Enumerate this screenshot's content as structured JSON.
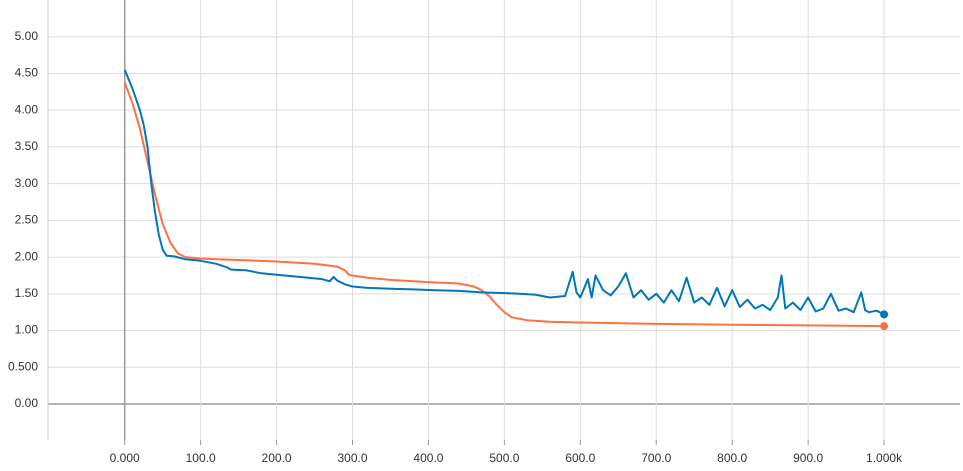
{
  "chart_data": {
    "type": "line",
    "xlim": [
      -101,
      1100
    ],
    "ylim": [
      -0.49,
      5.5
    ],
    "xticks": [
      {
        "value": 0,
        "label": "0.000"
      },
      {
        "value": 100,
        "label": "100.0"
      },
      {
        "value": 200,
        "label": "200.0"
      },
      {
        "value": 300,
        "label": "300.0"
      },
      {
        "value": 400,
        "label": "400.0"
      },
      {
        "value": 500,
        "label": "500.0"
      },
      {
        "value": 600,
        "label": "600.0"
      },
      {
        "value": 700,
        "label": "700.0"
      },
      {
        "value": 800,
        "label": "800.0"
      },
      {
        "value": 900,
        "label": "900.0"
      },
      {
        "value": 1000,
        "label": "1.000k"
      }
    ],
    "yticks": [
      {
        "value": 0,
        "label": "0.00"
      },
      {
        "value": 0.5,
        "label": "0.500"
      },
      {
        "value": 1,
        "label": "1.00"
      },
      {
        "value": 1.5,
        "label": "1.50"
      },
      {
        "value": 2,
        "label": "2.00"
      },
      {
        "value": 2.5,
        "label": "2.50"
      },
      {
        "value": 3,
        "label": "3.00"
      },
      {
        "value": 3.5,
        "label": "3.50"
      },
      {
        "value": 4,
        "label": "4.00"
      },
      {
        "value": 4.5,
        "label": "4.50"
      },
      {
        "value": 5,
        "label": "5.00"
      }
    ],
    "grid": true,
    "series": [
      {
        "color": "#ff7043",
        "x": [
          0,
          10,
          20,
          30,
          40,
          50,
          60,
          70,
          80,
          100,
          150,
          200,
          250,
          280,
          290,
          295,
          300,
          320,
          350,
          400,
          440,
          460,
          470,
          480,
          490,
          500,
          510,
          530,
          560,
          600,
          700,
          800,
          900,
          1000
        ],
        "values": [
          4.38,
          4.1,
          3.75,
          3.3,
          2.85,
          2.45,
          2.2,
          2.05,
          2.0,
          1.98,
          1.96,
          1.94,
          1.91,
          1.87,
          1.82,
          1.76,
          1.75,
          1.72,
          1.69,
          1.66,
          1.64,
          1.6,
          1.55,
          1.47,
          1.35,
          1.25,
          1.18,
          1.14,
          1.12,
          1.11,
          1.09,
          1.08,
          1.07,
          1.06
        ]
      },
      {
        "color": "#0077bb",
        "x": [
          0,
          10,
          20,
          25,
          30,
          35,
          40,
          45,
          50,
          55,
          65,
          80,
          100,
          120,
          135,
          140,
          160,
          180,
          200,
          230,
          260,
          270,
          275,
          280,
          290,
          300,
          320,
          350,
          380,
          410,
          440,
          470,
          500,
          520,
          540,
          560,
          580,
          590,
          595,
          600,
          610,
          615,
          620,
          630,
          640,
          650,
          660,
          670,
          680,
          690,
          700,
          710,
          720,
          730,
          740,
          750,
          760,
          770,
          780,
          790,
          800,
          810,
          820,
          830,
          840,
          850,
          860,
          865,
          870,
          880,
          890,
          900,
          910,
          920,
          930,
          940,
          950,
          960,
          970,
          975,
          980,
          990,
          1000
        ],
        "values": [
          4.55,
          4.3,
          4.0,
          3.8,
          3.5,
          3.0,
          2.6,
          2.3,
          2.1,
          2.02,
          2.01,
          1.97,
          1.95,
          1.91,
          1.86,
          1.83,
          1.82,
          1.78,
          1.76,
          1.73,
          1.7,
          1.67,
          1.73,
          1.68,
          1.63,
          1.6,
          1.58,
          1.57,
          1.56,
          1.55,
          1.54,
          1.52,
          1.51,
          1.5,
          1.49,
          1.45,
          1.47,
          1.8,
          1.52,
          1.45,
          1.7,
          1.45,
          1.75,
          1.55,
          1.48,
          1.6,
          1.78,
          1.45,
          1.55,
          1.42,
          1.5,
          1.38,
          1.55,
          1.4,
          1.72,
          1.38,
          1.45,
          1.35,
          1.58,
          1.33,
          1.55,
          1.32,
          1.42,
          1.3,
          1.35,
          1.28,
          1.45,
          1.75,
          1.3,
          1.38,
          1.28,
          1.45,
          1.26,
          1.3,
          1.5,
          1.27,
          1.3,
          1.25,
          1.52,
          1.28,
          1.25,
          1.27,
          1.22
        ]
      }
    ]
  }
}
